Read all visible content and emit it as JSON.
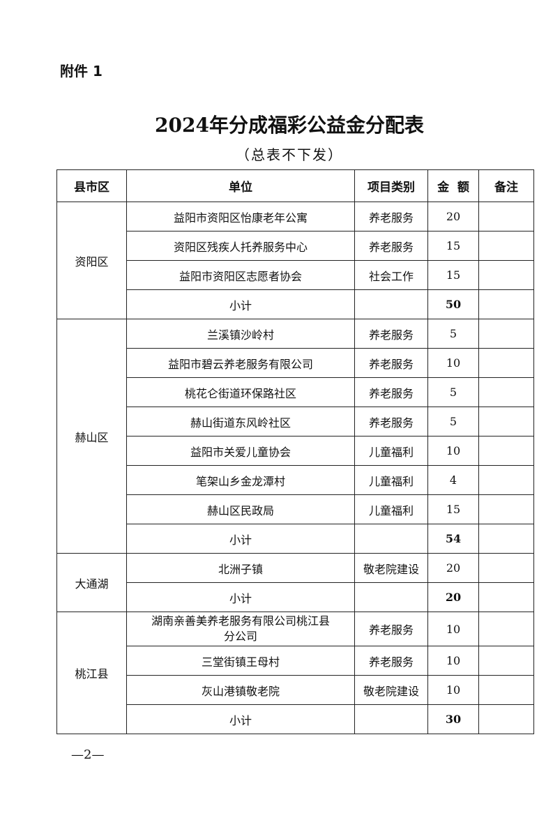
{
  "attachment_label": "附件 1",
  "title": "2024年分成福彩公益金分配表",
  "subtitle": "（总表不下发）",
  "table": {
    "headers": [
      "县市区",
      "单位",
      "项目类别",
      "金  额",
      "备注"
    ],
    "groups": [
      {
        "region": "资阳区",
        "rows": [
          {
            "unit": "益阳市资阳区怡康老年公寓",
            "category": "养老服务",
            "amount": "20"
          },
          {
            "unit": "资阳区残疾人托养服务中心",
            "category": "养老服务",
            "amount": "15"
          },
          {
            "unit": "益阳市资阳区志愿者协会",
            "category": "社会工作",
            "amount": "15"
          }
        ],
        "subtotal_label": "小计",
        "subtotal": "50"
      },
      {
        "region": "赫山区",
        "rows": [
          {
            "unit": "兰溪镇沙岭村",
            "category": "养老服务",
            "amount": "5"
          },
          {
            "unit": "益阳市碧云养老服务有限公司",
            "category": "养老服务",
            "amount": "10"
          },
          {
            "unit": "桃花仑街道环保路社区",
            "category": "养老服务",
            "amount": "5"
          },
          {
            "unit": "赫山街道东风岭社区",
            "category": "养老服务",
            "amount": "5"
          },
          {
            "unit": "益阳市关爱儿童协会",
            "category": "儿童福利",
            "amount": "10"
          },
          {
            "unit": "笔架山乡金龙潭村",
            "category": "儿童福利",
            "amount": "4"
          },
          {
            "unit": "赫山区民政局",
            "category": "儿童福利",
            "amount": "15"
          }
        ],
        "subtotal_label": "小计",
        "subtotal": "54"
      },
      {
        "region": "大通湖",
        "rows": [
          {
            "unit": "北洲子镇",
            "category": "敬老院建设",
            "amount": "20"
          }
        ],
        "subtotal_label": "小计",
        "subtotal": "20"
      },
      {
        "region": "桃江县",
        "rows": [
          {
            "unit": "湖南亲善美养老服务有限公司桃江县分公司",
            "category": "养老服务",
            "amount": "10"
          },
          {
            "unit": "三堂街镇王母村",
            "category": "养老服务",
            "amount": "10"
          },
          {
            "unit": "灰山港镇敬老院",
            "category": "敬老院建设",
            "amount": "10"
          }
        ],
        "subtotal_label": "小计",
        "subtotal": "30"
      }
    ]
  },
  "page_number": "—2—"
}
